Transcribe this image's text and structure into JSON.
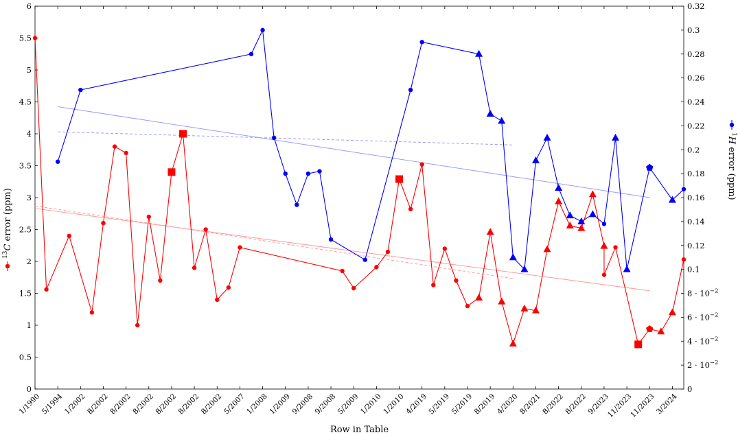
{
  "chart_data": {
    "type": "line",
    "xlabel": "Row in Table",
    "ylabel_left": {
      "prefix": "",
      "sup": "13",
      "rest": "C error (ppm)"
    },
    "ylabel_right": {
      "prefix": "",
      "sup": "1",
      "rest": "H error (ppm)"
    },
    "y_left": {
      "min": 0,
      "max": 6,
      "ticks": [
        "0",
        "0.5",
        "1",
        "1.5",
        "2",
        "2.5",
        "3",
        "3.5",
        "4",
        "4.5",
        "5",
        "5.5",
        "6"
      ]
    },
    "y_right": {
      "min": 0,
      "max": 0.32,
      "ticks": [
        {
          "v": 0,
          "t": "0"
        },
        {
          "v": 0.02,
          "t": "2 · 10",
          "e": "−2"
        },
        {
          "v": 0.04,
          "t": "4 · 10",
          "e": "−2"
        },
        {
          "v": 0.06,
          "t": "6 · 10",
          "e": "−2"
        },
        {
          "v": 0.08,
          "t": "8 · 10",
          "e": "−2"
        },
        {
          "v": 0.1,
          "t": "0.1"
        },
        {
          "v": 0.12,
          "t": "0.12"
        },
        {
          "v": 0.14,
          "t": "0.14"
        },
        {
          "v": 0.16,
          "t": "0.16"
        },
        {
          "v": 0.18,
          "t": "0.18"
        },
        {
          "v": 0.2,
          "t": "0.2"
        },
        {
          "v": 0.22,
          "t": "0.22"
        },
        {
          "v": 0.24,
          "t": "0.24"
        },
        {
          "v": 0.26,
          "t": "0.26"
        },
        {
          "v": 0.28,
          "t": "0.28"
        },
        {
          "v": 0.3,
          "t": "0.3"
        },
        {
          "v": 0.32,
          "t": "0.32"
        }
      ]
    },
    "x_range": [
      0,
      57
    ],
    "x_ticks": [
      {
        "x": 0,
        "label": "1/1990"
      },
      {
        "x": 2,
        "label": "5/1994"
      },
      {
        "x": 4,
        "label": "1/2002"
      },
      {
        "x": 6,
        "label": "8/2002"
      },
      {
        "x": 8,
        "label": "8/2002"
      },
      {
        "x": 10,
        "label": "8/2002"
      },
      {
        "x": 12,
        "label": "8/2002"
      },
      {
        "x": 14,
        "label": "8/2002"
      },
      {
        "x": 16,
        "label": "8/2002"
      },
      {
        "x": 18,
        "label": "5/2007"
      },
      {
        "x": 20,
        "label": "1/2008"
      },
      {
        "x": 22,
        "label": "1/2009"
      },
      {
        "x": 24,
        "label": "9/2008"
      },
      {
        "x": 26,
        "label": "9/2008"
      },
      {
        "x": 28,
        "label": "5/2009"
      },
      {
        "x": 30,
        "label": "1/2010"
      },
      {
        "x": 32,
        "label": "1/2010"
      },
      {
        "x": 34,
        "label": "4/2019"
      },
      {
        "x": 36,
        "label": "5/2019"
      },
      {
        "x": 38,
        "label": "5/2019"
      },
      {
        "x": 40,
        "label": "8/2019"
      },
      {
        "x": 42,
        "label": "4/2020"
      },
      {
        "x": 44,
        "label": "8/2021"
      },
      {
        "x": 46,
        "label": "8/2022"
      },
      {
        "x": 48,
        "label": "8/2022"
      },
      {
        "x": 50,
        "label": "9/2023"
      },
      {
        "x": 52,
        "label": "11/2023"
      },
      {
        "x": 54,
        "label": "11/2023"
      },
      {
        "x": 56,
        "label": "3/2024"
      }
    ],
    "series": [
      {
        "axis": "left",
        "color": "#ff0000",
        "points": [
          {
            "x": 0,
            "y": 5.5,
            "m": "c"
          },
          {
            "x": 1,
            "y": 1.56,
            "m": "c"
          },
          {
            "x": 3,
            "y": 2.4,
            "m": "c"
          },
          {
            "x": 5,
            "y": 1.2,
            "m": "c"
          },
          {
            "x": 6,
            "y": 2.6,
            "m": "c"
          },
          {
            "x": 7,
            "y": 3.8,
            "m": "c"
          },
          {
            "x": 8,
            "y": 3.7,
            "m": "c"
          },
          {
            "x": 9,
            "y": 1.0,
            "m": "c"
          },
          {
            "x": 10,
            "y": 2.7,
            "m": "c"
          },
          {
            "x": 11,
            "y": 1.7,
            "m": "c"
          },
          {
            "x": 12,
            "y": 3.4,
            "m": "s"
          },
          {
            "x": 13,
            "y": 4.0,
            "m": "s"
          },
          {
            "x": 14,
            "y": 1.9,
            "m": "c"
          },
          {
            "x": 15,
            "y": 2.5,
            "m": "c"
          },
          {
            "x": 16,
            "y": 1.4,
            "m": "c"
          },
          {
            "x": 17,
            "y": 1.59,
            "m": "c"
          },
          {
            "x": 18,
            "y": 2.22,
            "m": "c"
          },
          {
            "x": 27,
            "y": 1.85,
            "m": "c"
          },
          {
            "x": 28,
            "y": 1.58,
            "m": "c"
          },
          {
            "x": 30,
            "y": 1.91,
            "m": "c"
          },
          {
            "x": 31,
            "y": 2.15,
            "m": "c"
          },
          {
            "x": 32,
            "y": 3.29,
            "m": "s"
          },
          {
            "x": 33,
            "y": 2.82,
            "m": "c"
          },
          {
            "x": 34,
            "y": 3.52,
            "m": "c"
          },
          {
            "x": 35,
            "y": 1.63,
            "m": "c"
          },
          {
            "x": 36,
            "y": 2.2,
            "m": "c"
          },
          {
            "x": 37,
            "y": 1.7,
            "m": "c"
          },
          {
            "x": 38,
            "y": 1.3,
            "m": "c"
          },
          {
            "x": 39,
            "y": 1.43,
            "m": "t"
          },
          {
            "x": 40,
            "y": 2.46,
            "m": "t"
          },
          {
            "x": 41,
            "y": 1.37,
            "m": "t"
          },
          {
            "x": 42,
            "y": 0.71,
            "m": "t"
          },
          {
            "x": 43,
            "y": 1.26,
            "m": "t"
          },
          {
            "x": 44,
            "y": 1.23,
            "m": "t"
          },
          {
            "x": 45,
            "y": 2.19,
            "m": "t"
          },
          {
            "x": 46,
            "y": 2.94,
            "m": "t"
          },
          {
            "x": 47,
            "y": 2.56,
            "m": "t"
          },
          {
            "x": 48,
            "y": 2.52,
            "m": "t"
          },
          {
            "x": 49,
            "y": 3.05,
            "m": "t"
          },
          {
            "x": 50,
            "y": 2.24,
            "m": "t"
          },
          {
            "x": 50,
            "y": 1.79,
            "m": "c"
          },
          {
            "x": 51,
            "y": 2.22,
            "m": "c"
          },
          {
            "x": 53,
            "y": 0.7,
            "m": "s"
          },
          {
            "x": 54,
            "y": 0.94,
            "m": "p"
          },
          {
            "x": 55,
            "y": 0.9,
            "m": "t"
          },
          {
            "x": 56,
            "y": 1.2,
            "m": "t"
          },
          {
            "x": 57,
            "y": 2.03,
            "m": "c"
          }
        ],
        "trend_solid": {
          "x": [
            0,
            54
          ],
          "y": [
            2.83,
            1.54
          ]
        },
        "trend_dashed": {
          "x": [
            0,
            42
          ],
          "y": [
            2.87,
            1.73
          ]
        }
      },
      {
        "axis": "right",
        "color": "#0000ff",
        "points": [
          {
            "x": 2,
            "y": 0.19,
            "m": "c"
          },
          {
            "x": 4,
            "y": 0.25,
            "m": "c"
          },
          {
            "x": 19,
            "y": 0.28,
            "m": "c"
          },
          {
            "x": 20,
            "y": 0.3,
            "m": "c"
          },
          {
            "x": 21,
            "y": 0.21,
            "m": "c"
          },
          {
            "x": 22,
            "y": 0.18,
            "m": "c"
          },
          {
            "x": 23,
            "y": 0.154,
            "m": "c"
          },
          {
            "x": 24,
            "y": 0.18,
            "m": "c"
          },
          {
            "x": 25,
            "y": 0.182,
            "m": "c"
          },
          {
            "x": 26,
            "y": 0.125,
            "m": "c"
          },
          {
            "x": 29,
            "y": 0.108,
            "m": "c"
          },
          {
            "x": 33,
            "y": 0.25,
            "m": "c"
          },
          {
            "x": 34,
            "y": 0.29,
            "m": "c"
          },
          {
            "x": 39,
            "y": 0.28,
            "m": "t"
          },
          {
            "x": 40,
            "y": 0.23,
            "m": "t"
          },
          {
            "x": 41,
            "y": 0.224,
            "m": "t"
          },
          {
            "x": 42,
            "y": 0.11,
            "m": "t"
          },
          {
            "x": 43,
            "y": 0.1,
            "m": "t"
          },
          {
            "x": 44,
            "y": 0.191,
            "m": "t"
          },
          {
            "x": 45,
            "y": 0.21,
            "m": "t"
          },
          {
            "x": 46,
            "y": 0.168,
            "m": "t"
          },
          {
            "x": 47,
            "y": 0.145,
            "m": "t"
          },
          {
            "x": 48,
            "y": 0.14,
            "m": "t"
          },
          {
            "x": 49,
            "y": 0.146,
            "m": "t"
          },
          {
            "x": 50,
            "y": 0.138,
            "m": "c"
          },
          {
            "x": 51,
            "y": 0.21,
            "m": "t"
          },
          {
            "x": 52,
            "y": 0.1,
            "m": "t"
          },
          {
            "x": 54,
            "y": 0.185,
            "m": "p"
          },
          {
            "x": 56,
            "y": 0.158,
            "m": "t"
          },
          {
            "x": 57,
            "y": 0.167,
            "m": "c"
          }
        ],
        "trend_solid": {
          "x": [
            2,
            54
          ],
          "y": [
            0.236,
            0.16
          ]
        },
        "trend_dashed": {
          "x": [
            2,
            42
          ],
          "y": [
            0.215,
            0.204
          ]
        }
      }
    ]
  }
}
